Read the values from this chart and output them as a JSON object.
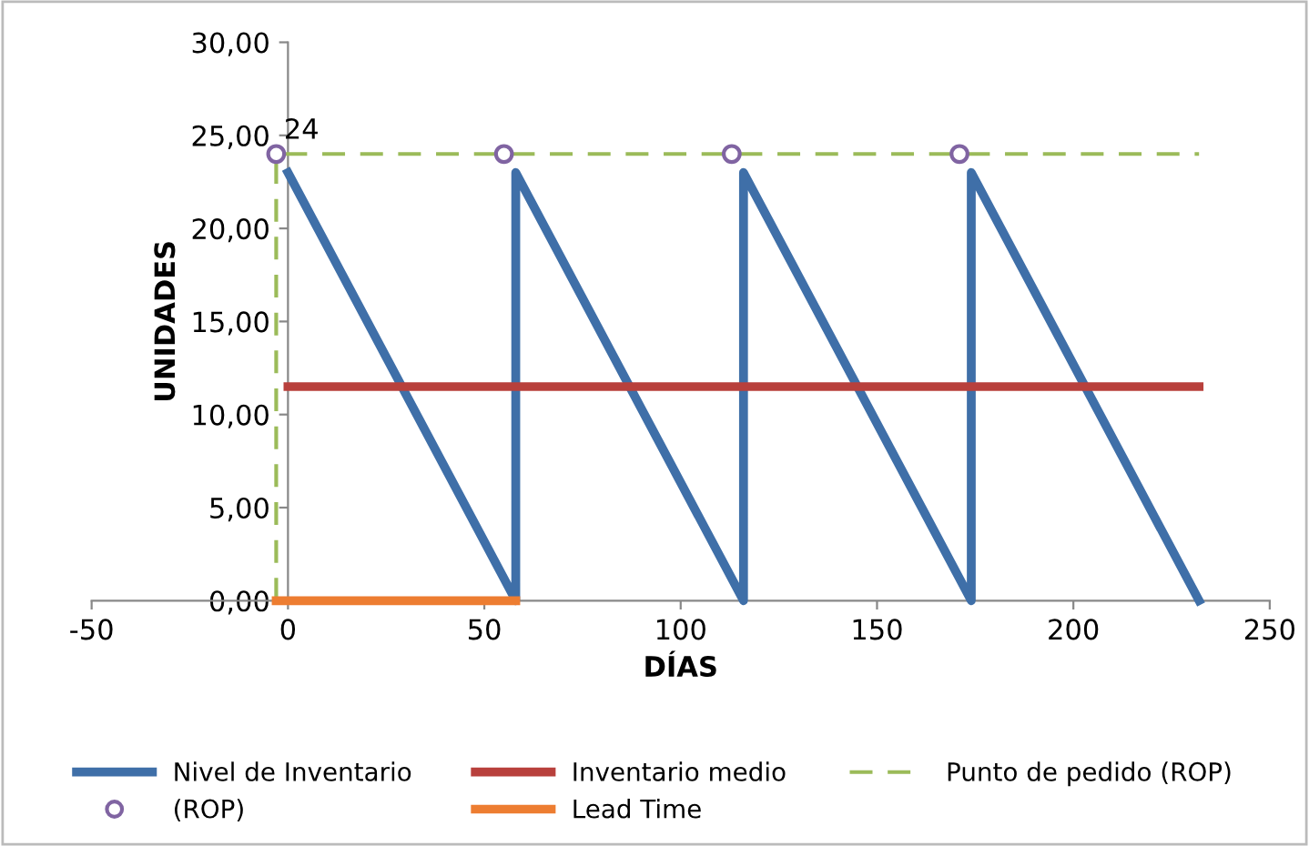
{
  "chart_data": {
    "type": "line",
    "xlabel": "DÍAS",
    "ylabel": "UNIDADES",
    "xlim": [
      -50,
      250
    ],
    "xticks": [
      -50,
      0,
      50,
      100,
      150,
      200,
      250
    ],
    "ylim": [
      0,
      30
    ],
    "yticks": [
      {
        "value": 0,
        "label": "0,00"
      },
      {
        "value": 5,
        "label": "5,00"
      },
      {
        "value": 10,
        "label": "10,00"
      },
      {
        "value": 15,
        "label": "15,00"
      },
      {
        "value": 20,
        "label": "20,00"
      },
      {
        "value": 25,
        "label": "25,00"
      },
      {
        "value": 30,
        "label": "30,00"
      }
    ],
    "grid": false,
    "legend": "bottom",
    "series": [
      {
        "name": "Nivel de Inventario",
        "color": "#3f6fa8",
        "x": [
          0,
          58,
          58,
          116,
          116,
          174,
          174,
          232
        ],
        "values": [
          23,
          0,
          23,
          0,
          23,
          0,
          23,
          0
        ]
      },
      {
        "name": "Inventario medio",
        "color": "#b8403c",
        "x": [
          0,
          232
        ],
        "values": [
          11.5,
          11.5
        ]
      },
      {
        "name": "Punto de pedido (ROP)",
        "color": "#9bbb59",
        "line_style": "dashed",
        "x": [
          -3,
          -3,
          232
        ],
        "values": [
          0,
          24,
          24
        ]
      },
      {
        "name": "(ROP)",
        "type": "scatter",
        "color": "#8064a2",
        "marker": "circle",
        "x": [
          -3,
          55,
          113,
          171
        ],
        "values": [
          24,
          24,
          24,
          24
        ]
      },
      {
        "name": "Lead Time",
        "color": "#ed7d31",
        "x": [
          -3,
          58
        ],
        "values": [
          0,
          0
        ]
      }
    ],
    "annotations": [
      {
        "text": "24",
        "x": -3,
        "y": 24
      }
    ]
  }
}
